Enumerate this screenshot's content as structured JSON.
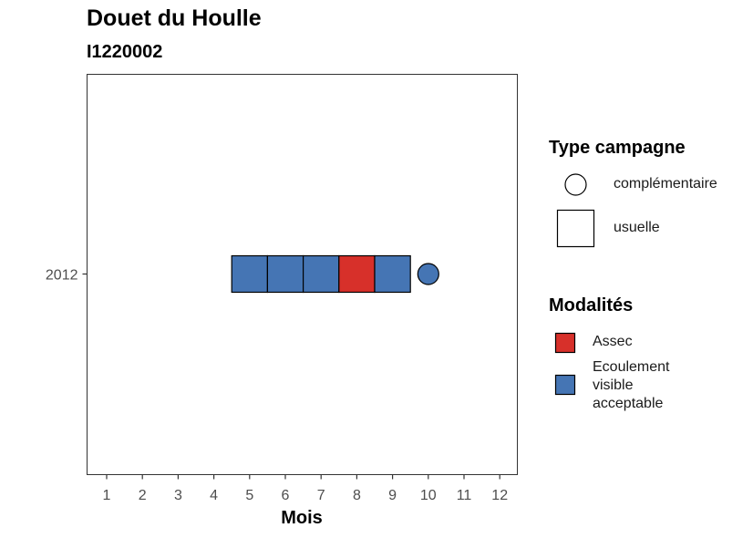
{
  "chart_data": {
    "type": "scatter",
    "title": "Douet du Houlle",
    "subtitle": "I1220002",
    "xlabel": "Mois",
    "ylabel": "",
    "x_ticks": [
      "1",
      "2",
      "3",
      "4",
      "5",
      "6",
      "7",
      "8",
      "9",
      "10",
      "11",
      "12"
    ],
    "xlim": [
      0.5,
      12.5
    ],
    "y_categories": [
      "2012"
    ],
    "points": [
      {
        "mois": 5,
        "annee": "2012",
        "type": "usuelle",
        "modalite": "Ecoulement visible acceptable"
      },
      {
        "mois": 6,
        "annee": "2012",
        "type": "usuelle",
        "modalite": "Ecoulement visible acceptable"
      },
      {
        "mois": 7,
        "annee": "2012",
        "type": "usuelle",
        "modalite": "Ecoulement visible acceptable"
      },
      {
        "mois": 8,
        "annee": "2012",
        "type": "usuelle",
        "modalite": "Assec"
      },
      {
        "mois": 9,
        "annee": "2012",
        "type": "usuelle",
        "modalite": "Ecoulement visible acceptable"
      },
      {
        "mois": 10,
        "annee": "2012",
        "type": "complémentaire",
        "modalite": "Ecoulement visible acceptable"
      }
    ],
    "colors": {
      "Assec": "#d7302a",
      "Ecoulement visible acceptable": "#4575b4"
    },
    "grid": false,
    "legend_placement": "right"
  },
  "legend": {
    "type_title": "Type campagne",
    "type_items": [
      "complémentaire",
      "usuelle"
    ],
    "modalites_title": "Modalités",
    "modalites_items": [
      "Assec",
      "Ecoulement visible acceptable"
    ],
    "modalites_lines": [
      [
        "Assec"
      ],
      [
        "Ecoulement",
        "visible",
        "acceptable"
      ]
    ]
  }
}
